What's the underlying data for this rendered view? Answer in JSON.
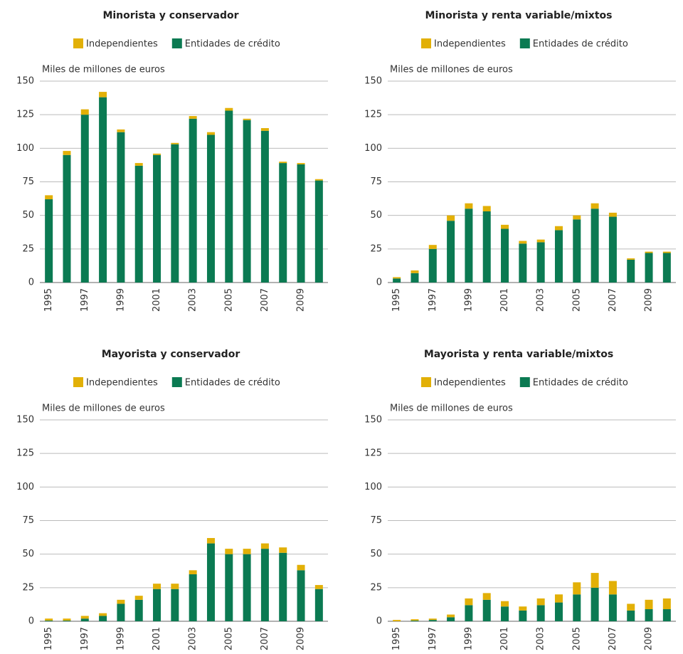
{
  "chart_data": [
    {
      "type": "bar",
      "stacked": true,
      "title": "Minorista y conservador",
      "y_label": "Miles de millones de euros",
      "categories": [
        "1995",
        null,
        "1997",
        null,
        "1999",
        null,
        "2001",
        null,
        "2003",
        null,
        "2005",
        null,
        "2007",
        null,
        "2009",
        null
      ],
      "series": [
        {
          "name": "Independientes",
          "color": "#e2b007",
          "values": [
            3,
            3,
            4,
            4,
            2,
            2,
            1,
            1,
            2,
            2,
            2,
            1,
            2,
            1,
            1,
            1
          ]
        },
        {
          "name": "Entidades de crédito",
          "color": "#0b7a52",
          "values": [
            62,
            95,
            125,
            138,
            112,
            87,
            95,
            103,
            122,
            110,
            128,
            121,
            113,
            89,
            88,
            76
          ]
        }
      ],
      "ylim": [
        0,
        150
      ],
      "yticks": [
        0,
        25,
        50,
        75,
        100,
        125,
        150
      ],
      "grid": true
    },
    {
      "type": "bar",
      "stacked": true,
      "title": "Minorista y renta variable/mixtos",
      "y_label": "Miles de millones de euros",
      "categories": [
        "1995",
        null,
        "1997",
        null,
        "1999",
        null,
        "2001",
        null,
        "2003",
        null,
        "2005",
        null,
        "2007",
        null,
        "2009",
        null
      ],
      "series": [
        {
          "name": "Independientes",
          "color": "#e2b007",
          "values": [
            1,
            2,
            3,
            4,
            4,
            4,
            3,
            2,
            2,
            3,
            3,
            4,
            3,
            1,
            1,
            1
          ]
        },
        {
          "name": "Entidades de crédito",
          "color": "#0b7a52",
          "values": [
            3,
            7,
            25,
            46,
            55,
            53,
            40,
            29,
            30,
            39,
            47,
            55,
            49,
            17,
            22,
            22
          ]
        }
      ],
      "ylim": [
        0,
        150
      ],
      "yticks": [
        0,
        25,
        50,
        75,
        100,
        125,
        150
      ],
      "grid": true
    },
    {
      "type": "bar",
      "stacked": true,
      "title": "Mayorista y conservador",
      "y_label": "Miles de millones de euros",
      "categories": [
        "1995",
        null,
        "1997",
        null,
        "1999",
        null,
        "2001",
        null,
        "2003",
        null,
        "2005",
        null,
        "2007",
        null,
        "2009",
        null
      ],
      "series": [
        {
          "name": "Independientes",
          "color": "#e2b007",
          "values": [
            1.5,
            1.5,
            2,
            2,
            3,
            3,
            4,
            4,
            3,
            4,
            4,
            4,
            4,
            4,
            4,
            3
          ]
        },
        {
          "name": "Entidades de crédito",
          "color": "#0b7a52",
          "values": [
            0.5,
            0.5,
            2,
            4,
            13,
            16,
            24,
            24,
            35,
            58,
            50,
            50,
            54,
            51,
            38,
            24
          ]
        }
      ],
      "ylim": [
        0,
        150
      ],
      "yticks": [
        0,
        25,
        50,
        75,
        100,
        125,
        150
      ],
      "grid": true
    },
    {
      "type": "bar",
      "stacked": true,
      "title": "Mayorista y renta variable/mixtos",
      "y_label": "Miles de millones de euros",
      "categories": [
        "1995",
        null,
        "1997",
        null,
        "1999",
        null,
        "2001",
        null,
        "2003",
        null,
        "2005",
        null,
        "2007",
        null,
        "2009",
        null
      ],
      "series": [
        {
          "name": "Independientes",
          "color": "#e2b007",
          "values": [
            1,
            1,
            1,
            2,
            5,
            5,
            4,
            3,
            5,
            6,
            9,
            11,
            10,
            5,
            7,
            8
          ]
        },
        {
          "name": "Entidades de crédito",
          "color": "#0b7a52",
          "values": [
            0,
            0.5,
            1,
            3,
            12,
            16,
            11,
            8,
            12,
            14,
            20,
            25,
            20,
            8,
            9,
            9
          ]
        }
      ],
      "ylim": [
        0,
        150
      ],
      "yticks": [
        0,
        25,
        50,
        75,
        100,
        125,
        150
      ],
      "grid": true
    }
  ]
}
